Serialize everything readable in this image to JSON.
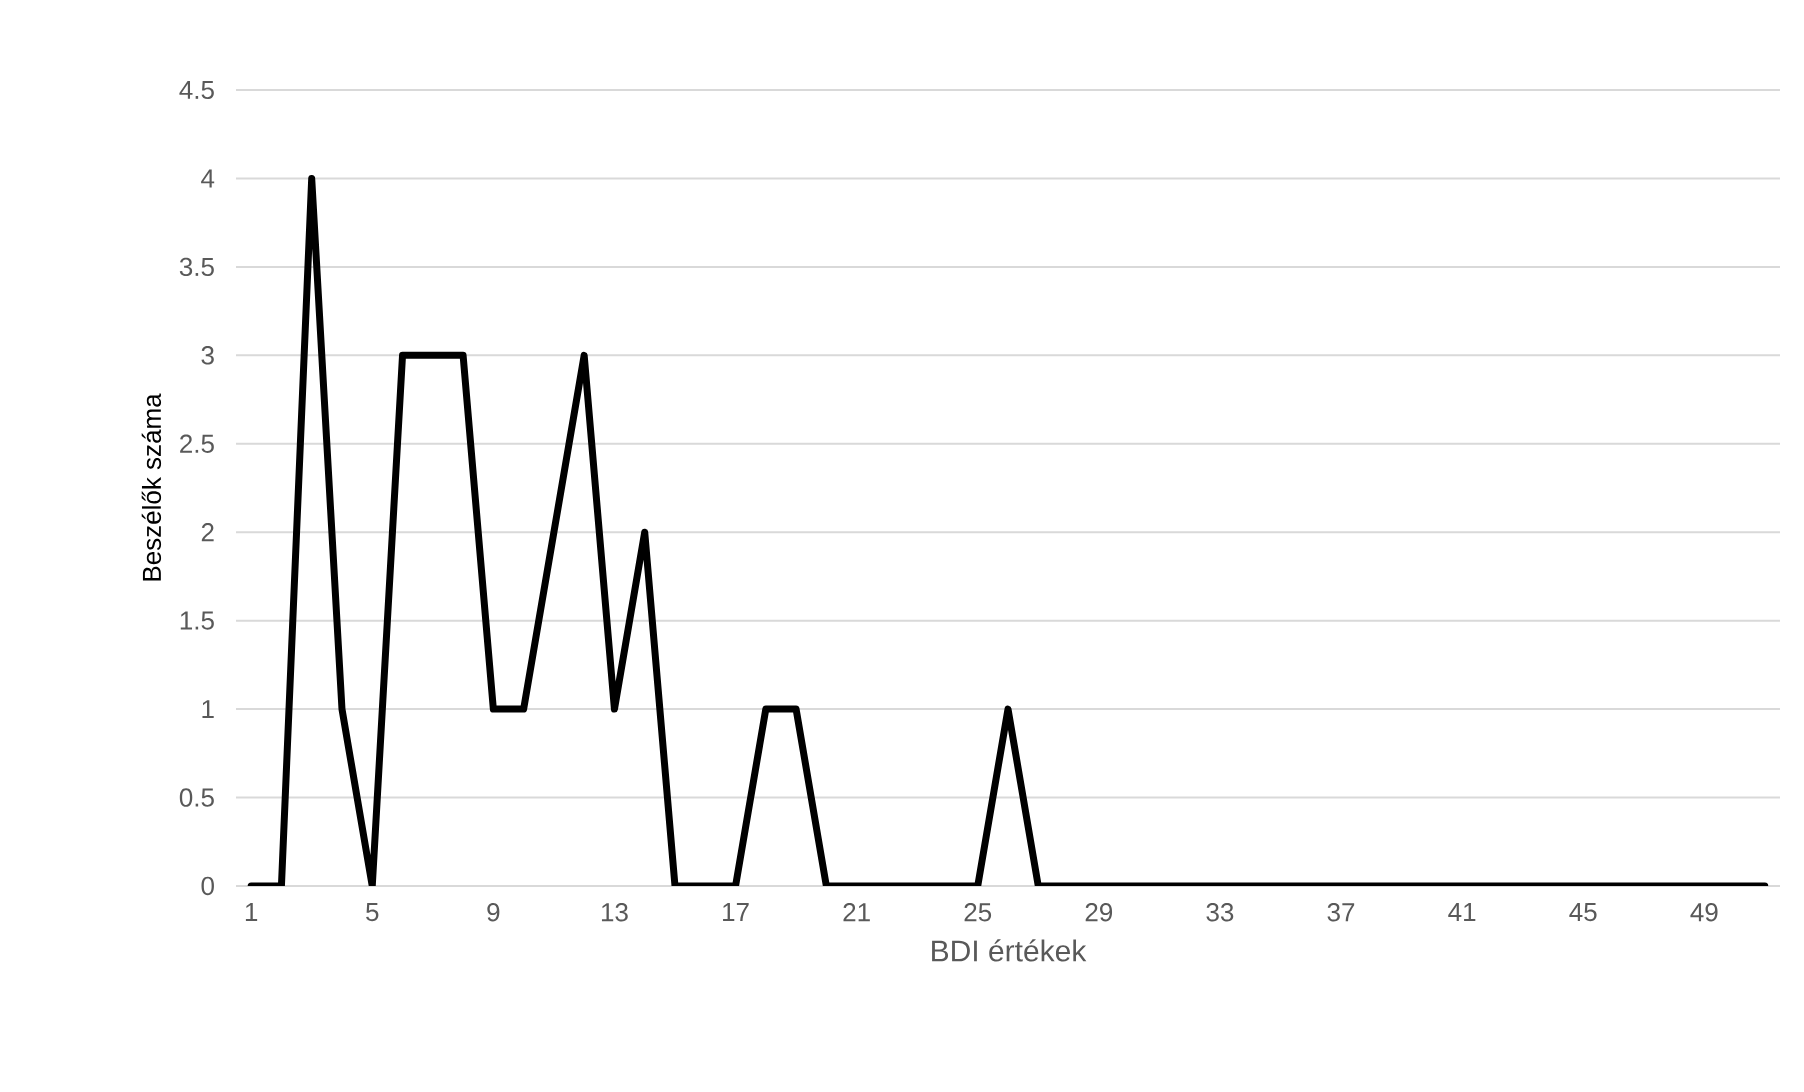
{
  "chart_data": {
    "type": "line",
    "xlabel": "BDI értékek",
    "ylabel": "Beszélők száma",
    "categories": [
      "1",
      null,
      null,
      null,
      "5",
      null,
      null,
      null,
      "9",
      null,
      null,
      null,
      "13",
      null,
      null,
      null,
      "17",
      null,
      null,
      null,
      "21",
      null,
      null,
      null,
      "25",
      null,
      null,
      null,
      "29",
      null,
      null,
      null,
      "33",
      null,
      null,
      null,
      "37",
      null,
      null,
      null,
      "41",
      null,
      null,
      null,
      "45",
      null,
      null,
      null,
      "49",
      null,
      null
    ],
    "series": [
      {
        "color": "#000000",
        "values": [
          0,
          0,
          4,
          1,
          0,
          3,
          3,
          3,
          1,
          1,
          2,
          3,
          1,
          2,
          0,
          0,
          0,
          1,
          1,
          0,
          0,
          0,
          0,
          0,
          0,
          1,
          0,
          0,
          0,
          0,
          0,
          0,
          0,
          0,
          0,
          0,
          0,
          0,
          0,
          0,
          0,
          0,
          0,
          0,
          0,
          0,
          0,
          0,
          0,
          0,
          0
        ]
      }
    ],
    "ylim": [
      0,
      4.5
    ],
    "yticks": [
      0,
      0.5,
      1,
      1.5,
      2,
      2.5,
      3,
      3.5,
      4,
      4.5
    ],
    "grid": "y",
    "legend": false,
    "marker": "none",
    "line_style": "solid"
  }
}
